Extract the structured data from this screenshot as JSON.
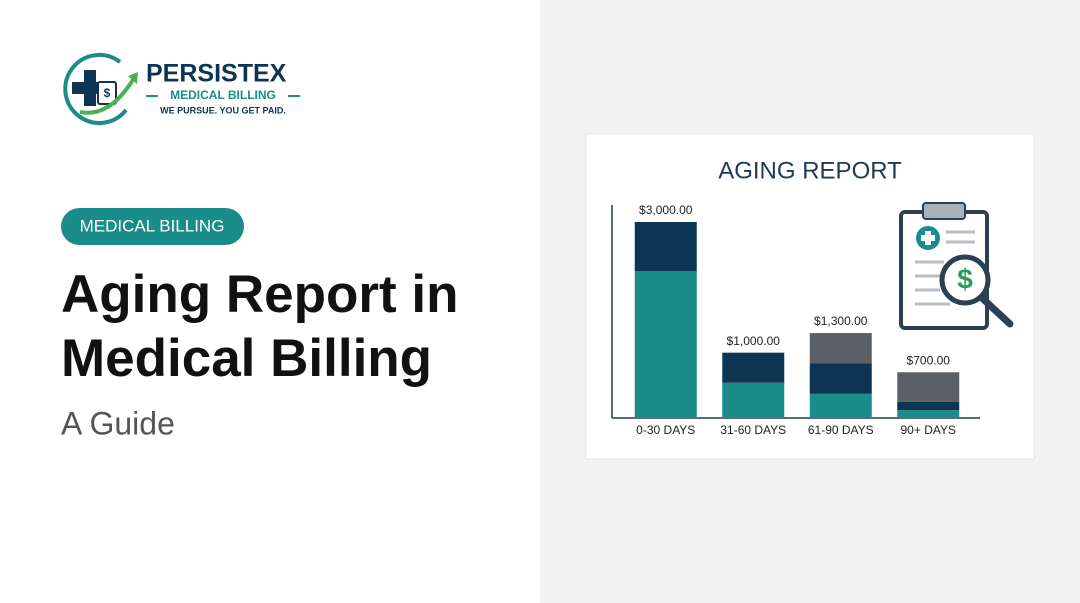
{
  "logo": {
    "name": "PERSISTEX",
    "subtitle": "MEDICAL BILLING",
    "tagline": "WE PURSUE. YOU GET PAID."
  },
  "tag": "MEDICAL BILLING",
  "title_lines": [
    "Aging Report in",
    "Medical Billing"
  ],
  "subtitle": "A Guide",
  "chart_data": {
    "type": "stacked-bar",
    "title": "AGING REPORT",
    "categories": [
      "0-30 DAYS",
      "31-60 DAYS",
      "61-90 DAYS",
      "90+ DAYS"
    ],
    "values": [
      3000,
      1000,
      1300,
      700
    ],
    "value_labels": [
      "$3,000.00",
      "$1,000.00",
      "$1,300.00",
      "$700.00"
    ],
    "series": [
      {
        "color": "#1a8c8a",
        "values": [
          2250,
          540,
          370,
          120
        ]
      },
      {
        "color": "#0d3553",
        "values": [
          750,
          460,
          470,
          130
        ]
      },
      {
        "color": "#5b6067",
        "values": [
          null,
          null,
          460,
          450
        ]
      }
    ]
  }
}
